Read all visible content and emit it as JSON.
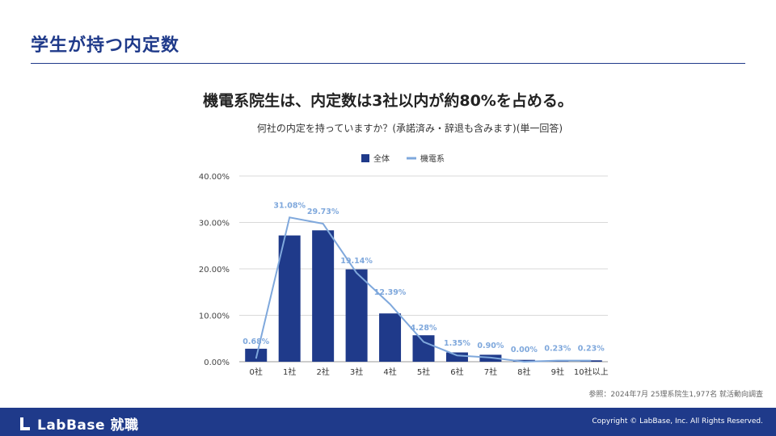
{
  "slide": {
    "title": "学生が持つ内定数",
    "headline": "機電系院生は、内定数は3社以内が約80%を占める。",
    "subheadline": "何社の内定を持っていますか？(承諾済み・辞退も含みます)(単一回答)",
    "source": "参照：2024年7月 25理系院生1,977名 就活動向調査"
  },
  "footer": {
    "brand": "LabBase 就職",
    "copyright": "Copyright © LabBase, Inc. All Rights Reserved."
  },
  "colors": {
    "primary": "#1f3a8a",
    "line": "#7fa8dc",
    "grid": "#d9d9d9",
    "text": "#222222"
  },
  "chart_data": {
    "type": "bar",
    "categories": [
      "0社",
      "1社",
      "2社",
      "3社",
      "4社",
      "5社",
      "6社",
      "7社",
      "8社",
      "9社",
      "10社以上"
    ],
    "series": [
      {
        "name": "全体",
        "type": "bar",
        "values": [
          2.8,
          27.2,
          28.3,
          19.9,
          10.4,
          5.7,
          2.0,
          1.5,
          0.4,
          0.1,
          0.3
        ]
      },
      {
        "name": "機電系",
        "type": "line",
        "values": [
          0.68,
          31.08,
          29.73,
          19.14,
          12.39,
          4.28,
          1.35,
          0.9,
          0.0,
          0.23,
          0.23
        ],
        "labels": [
          "0.68%",
          "31.08%",
          "29.73%",
          "19.14%",
          "12.39%",
          "4.28%",
          "1.35%",
          "0.90%",
          "0.00%",
          "0.23%",
          "0.23%"
        ]
      }
    ],
    "yticks": [
      "0.00%",
      "10.00%",
      "20.00%",
      "30.00%",
      "40.00%"
    ],
    "ylim": [
      0,
      40
    ],
    "legend": [
      "全体",
      "機電系"
    ],
    "legend_position": "top-center"
  }
}
